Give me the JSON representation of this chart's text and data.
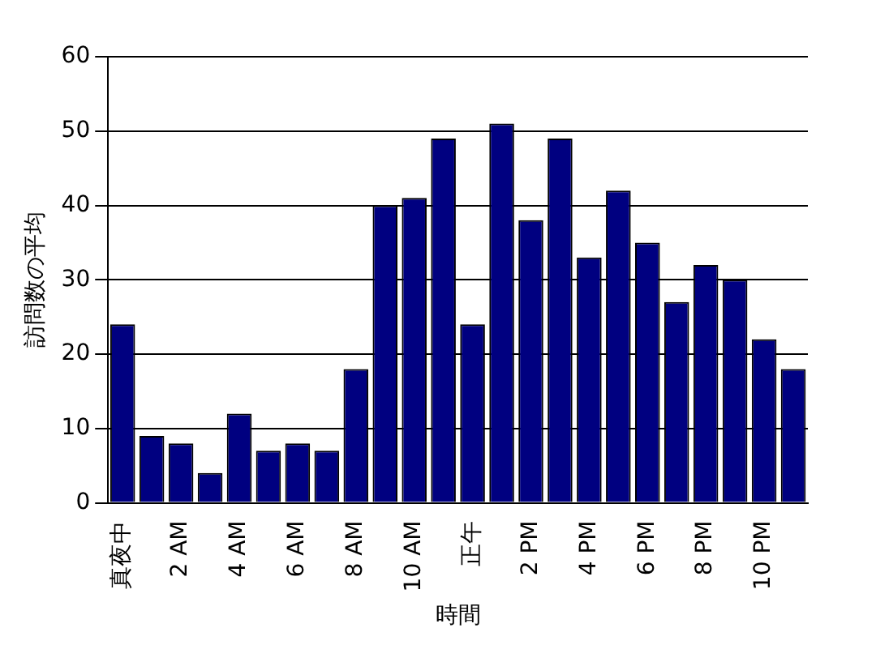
{
  "chart_data": {
    "type": "bar",
    "xlabel": "時間",
    "ylabel": "訪問数の平均",
    "categories": [
      "真夜中",
      null,
      "2 AM",
      null,
      "4 AM",
      null,
      "6 AM",
      null,
      "8 AM",
      null,
      "10 AM",
      null,
      "正午",
      null,
      "2 PM",
      null,
      "4 PM",
      null,
      "6 PM",
      null,
      "8 PM",
      null,
      "10 PM",
      null
    ],
    "values": [
      24,
      9,
      8,
      4,
      12,
      7,
      8,
      7,
      18,
      40,
      41,
      49,
      24,
      51,
      38,
      49,
      33,
      42,
      35,
      27,
      32,
      30,
      22,
      18
    ],
    "color": "#000080",
    "ylim": [
      0,
      60
    ],
    "yticks": [
      0,
      10,
      20,
      30,
      40,
      50,
      60
    ],
    "grid": "y"
  }
}
